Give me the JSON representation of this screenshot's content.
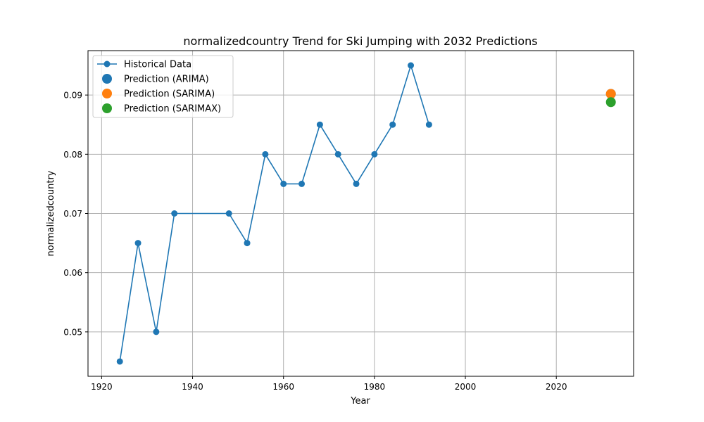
{
  "chart_data": {
    "type": "line",
    "title": "normalizedcountry Trend for Ski Jumping with 2032 Predictions",
    "xlabel": "Year",
    "ylabel": "normalizedcountry",
    "xlim": [
      1917,
      2037
    ],
    "ylim": [
      0.0425,
      0.0975
    ],
    "xticks": [
      1920,
      1940,
      1960,
      1980,
      2000,
      2020
    ],
    "yticks": [
      0.05,
      0.06,
      0.07,
      0.08,
      0.09
    ],
    "ytick_labels": [
      "0.05",
      "0.06",
      "0.07",
      "0.08",
      "0.09"
    ],
    "grid": true,
    "legend_position": "upper-left",
    "series": [
      {
        "name": "Historical Data",
        "kind": "line-marker",
        "color": "#1f77b4",
        "x": [
          1924,
          1928,
          1932,
          1936,
          1948,
          1952,
          1956,
          1960,
          1964,
          1968,
          1972,
          1976,
          1980,
          1984,
          1988,
          1992
        ],
        "y": [
          0.045,
          0.065,
          0.05,
          0.07,
          0.07,
          0.065,
          0.08,
          0.075,
          0.075,
          0.085,
          0.08,
          0.075,
          0.08,
          0.085,
          0.095,
          0.085
        ]
      },
      {
        "name": "Prediction (ARIMA)",
        "kind": "scatter",
        "color": "#1f77b4",
        "x": [
          2032
        ],
        "y": [
          0.0902
        ]
      },
      {
        "name": "Prediction (SARIMA)",
        "kind": "scatter",
        "color": "#ff7f0e",
        "x": [
          2032
        ],
        "y": [
          0.0902
        ]
      },
      {
        "name": "Prediction (SARIMAX)",
        "kind": "scatter",
        "color": "#2ca02c",
        "x": [
          2032
        ],
        "y": [
          0.0888
        ]
      }
    ]
  }
}
